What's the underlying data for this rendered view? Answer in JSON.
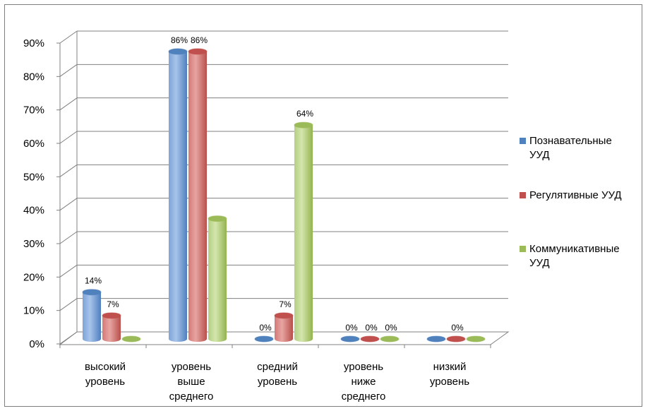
{
  "chart_data": {
    "type": "bar",
    "title": "",
    "xlabel": "",
    "ylabel": "",
    "ylim": [
      0,
      90
    ],
    "y_ticks": [
      "0%",
      "10%",
      "20%",
      "30%",
      "40%",
      "50%",
      "60%",
      "70%",
      "80%",
      "90%"
    ],
    "categories": [
      [
        "высокий",
        "уровень"
      ],
      [
        "уровень",
        "выше",
        "среднего"
      ],
      [
        "средний",
        "уровень"
      ],
      [
        "уровень",
        "ниже",
        "среднего"
      ],
      [
        "низкий",
        "уровень"
      ]
    ],
    "series": [
      {
        "name": [
          "Познавательные",
          "УУД"
        ],
        "color": "#4f81bd",
        "values": [
          14,
          86,
          0,
          0,
          0
        ],
        "labels": [
          "14%",
          "86%",
          "0%",
          "0%",
          ""
        ]
      },
      {
        "name": [
          "Регулятивные УУД"
        ],
        "color": "#c0504d",
        "values": [
          7,
          86,
          7,
          0,
          0
        ],
        "labels": [
          "7%",
          "86%",
          "7%",
          "0%",
          "0%"
        ]
      },
      {
        "name": [
          "Коммуникативные",
          "УУД"
        ],
        "color": "#9bbb59",
        "values": [
          0,
          36,
          64,
          0,
          0
        ],
        "labels": [
          "",
          "",
          "64%",
          "0%",
          ""
        ]
      }
    ],
    "grid": true,
    "legend_position": "right"
  }
}
